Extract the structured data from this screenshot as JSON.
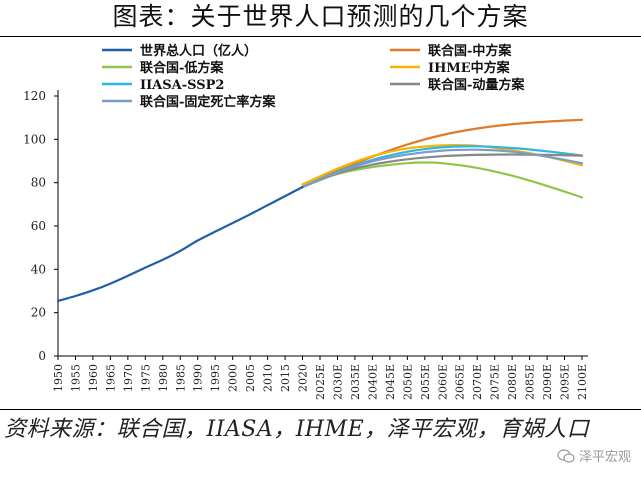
{
  "title": "图表：关于世界人口预测的几个方案",
  "source": "资料来源：联合国，IIASA，IHME，泽平宏观，育娲人口",
  "watermark": "泽平宏观",
  "chart_data": {
    "type": "line",
    "title": "图表：关于世界人口预测的几个方案",
    "xlabel": "",
    "ylabel": "",
    "ylim": [
      0,
      120
    ],
    "yticks": [
      0,
      20,
      40,
      60,
      80,
      100,
      120
    ],
    "xlim": [
      1950,
      2100
    ],
    "x_tick_labels": [
      "1950",
      "1955",
      "1960",
      "1965",
      "1970",
      "1975",
      "1980",
      "1985",
      "1990",
      "1995",
      "2000",
      "2005",
      "2010",
      "2015",
      "2020",
      "2025E",
      "2030E",
      "2035E",
      "2040E",
      "2045E",
      "2050E",
      "2055E",
      "2060E",
      "2065E",
      "2070E",
      "2075E",
      "2080E",
      "2085E",
      "2090E",
      "2095E",
      "2100E"
    ],
    "legend_position": "top",
    "series": [
      {
        "name": "世界总人口（亿人）",
        "color": "#1f5fa8",
        "x": [
          1950,
          1955,
          1960,
          1965,
          1970,
          1975,
          1980,
          1985,
          1990,
          1995,
          2000,
          2005,
          2010,
          2015,
          2020
        ],
        "values": [
          25.4,
          27.7,
          30.3,
          33.4,
          37.0,
          40.8,
          44.4,
          48.5,
          53.3,
          57.4,
          61.4,
          65.4,
          69.6,
          73.8,
          78.0
        ]
      },
      {
        "name": "联合国-中方案",
        "color": "#e07a2a",
        "x": [
          2020,
          2030,
          2040,
          2050,
          2060,
          2070,
          2080,
          2090,
          2100
        ],
        "values": [
          78.0,
          85.5,
          92.0,
          97.6,
          102.0,
          105.0,
          107.0,
          108.2,
          109.0
        ]
      },
      {
        "name": "联合国-低方案",
        "color": "#8fc64a",
        "x": [
          2020,
          2030,
          2040,
          2050,
          2055,
          2060,
          2070,
          2080,
          2090,
          2100
        ],
        "values": [
          78.0,
          84.0,
          87.2,
          89.0,
          89.3,
          89.0,
          86.8,
          83.2,
          78.5,
          73.2
        ]
      },
      {
        "name": "IHME中方案",
        "color": "#f4b400",
        "x": [
          2020,
          2030,
          2040,
          2050,
          2060,
          2065,
          2070,
          2080,
          2090,
          2100
        ],
        "values": [
          79.2,
          86.5,
          92.2,
          95.8,
          97.2,
          97.3,
          97.0,
          95.0,
          92.0,
          88.0
        ]
      },
      {
        "name": "IIASA-SSP2",
        "color": "#2fb5e0",
        "x": [
          2020,
          2030,
          2040,
          2050,
          2060,
          2070,
          2080,
          2090,
          2100
        ],
        "values": [
          78.0,
          85.0,
          90.5,
          94.3,
          96.3,
          96.8,
          96.0,
          94.5,
          92.5
        ]
      },
      {
        "name": "联合国-动量方案",
        "color": "#888888",
        "x": [
          2020,
          2030,
          2040,
          2050,
          2060,
          2070,
          2080,
          2090,
          2100
        ],
        "values": [
          78.0,
          84.3,
          88.3,
          90.8,
          92.2,
          92.8,
          93.0,
          92.8,
          92.5
        ]
      },
      {
        "name": "联合国-固定死亡率方案",
        "color": "#7a9cc8",
        "x": [
          2020,
          2030,
          2040,
          2050,
          2060,
          2070,
          2080,
          2090,
          2100
        ],
        "values": [
          78.0,
          84.8,
          89.8,
          93.0,
          94.8,
          95.2,
          94.3,
          92.0,
          89.0
        ]
      }
    ]
  }
}
